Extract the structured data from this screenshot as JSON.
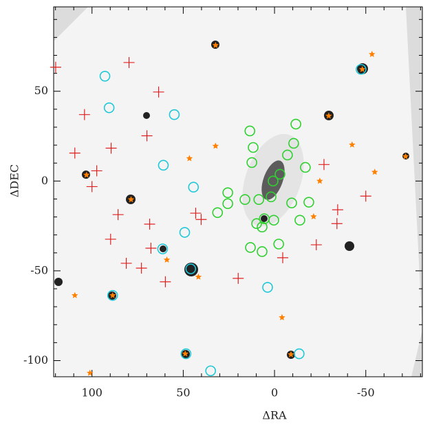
{
  "chart_data": {
    "type": "scatter",
    "x_label": "ΔRA",
    "y_label": "ΔDEC",
    "xlim": [
      121,
      -81
    ],
    "ylim": [
      -109,
      97
    ],
    "xticks": [
      100,
      50,
      0,
      -50
    ],
    "yticks": [
      50,
      0,
      -50,
      -100
    ],
    "xminorticks": [
      120,
      110,
      90,
      80,
      70,
      60,
      40,
      30,
      20,
      10,
      -10,
      -20,
      -30,
      -40,
      -60,
      -70,
      -80
    ],
    "yminorticks": [
      90,
      80,
      70,
      60,
      40,
      30,
      20,
      10,
      -10,
      -20,
      -30,
      -40,
      -60,
      -70,
      -80,
      -90
    ],
    "series": [
      {
        "color": "#ff8000",
        "marker": "star",
        "x": [
          32.3,
          -48.1,
          -53.4,
          -29.7,
          -71.8,
          -42.5,
          -54.9,
          -24.8,
          32.3,
          46.6,
          103.0,
          78.6,
          109.4,
          101.1,
          -4.1,
          41.7,
          59.0,
          -21.4,
          88.7,
          48.9,
          -9.0
        ],
        "y": [
          75.6,
          62.2,
          70.6,
          36.3,
          13.7,
          20.2,
          5.0,
          0,
          19.5,
          12.6,
          3.4,
          -10.3,
          -63.7,
          -106.9,
          -76.0,
          -53.4,
          -43.9,
          -19.8,
          -63.7,
          -96.2,
          -96.6
        ]
      },
      {
        "color": "#e02020",
        "marker": "cross",
        "x": [
          119.9,
          79.7,
          104.1,
          63.5,
          69.9,
          89.5,
          109.4,
          97.4,
          100.0,
          85.7,
          68.4,
          89.8,
          67.7,
          72.9,
          81.2,
          59.8,
          19.9,
          -4.5,
          -34.6,
          -34.2,
          -22.9,
          -27.1,
          -50.0,
          43.2,
          40.2
        ],
        "y": [
          63.4,
          66.0,
          37.0,
          49.6,
          25.2,
          18.3,
          15.6,
          5.7,
          -3.1,
          -18.7,
          -24.0,
          -32.4,
          -37.4,
          -48.5,
          -45.8,
          -56.1,
          -54.2,
          -42.7,
          -16.0,
          -23.7,
          -35.5,
          9.2,
          -8.4,
          -17.9,
          -21.4
        ]
      },
      {
        "color": "#20c8d8",
        "marker": "circle",
        "x": [
          92.9,
          90.6,
          54.9,
          60.9,
          44.4,
          61.3,
          49.2,
          45.9,
          88.7,
          3.8,
          48.5,
          -13.5,
          -47.4,
          35.0
        ],
        "y": [
          58.4,
          40.8,
          37.0,
          8.8,
          -3.4,
          -37.8,
          -28.6,
          -48.9,
          -63.7,
          -59.2,
          -96.2,
          -96.2,
          62.2,
          -105.7
        ]
      },
      {
        "color": "#30d030",
        "marker": "circle",
        "x": [
          13.5,
          11.7,
          12.4,
          -11.7,
          -10.5,
          -7.1,
          -16.9,
          -3.0,
          0.8,
          1.9,
          25.6,
          25.6,
          16.2,
          8.6,
          -9.4,
          -18.8,
          31.2,
          9.8,
          6.8,
          0.4,
          -13.9,
          5.6,
          13.2,
          6.8,
          -2.3
        ],
        "y": [
          27.9,
          18.7,
          10.3,
          31.7,
          21.0,
          14.5,
          7.6,
          3.8,
          0,
          -8.8,
          -6.5,
          -12.6,
          -10.3,
          -10.3,
          -12.2,
          -11.8,
          -17.6,
          -23.7,
          -25.6,
          -21.8,
          -21.8,
          -21.0,
          -37.0,
          -39.3,
          -35.1
        ]
      }
    ]
  }
}
